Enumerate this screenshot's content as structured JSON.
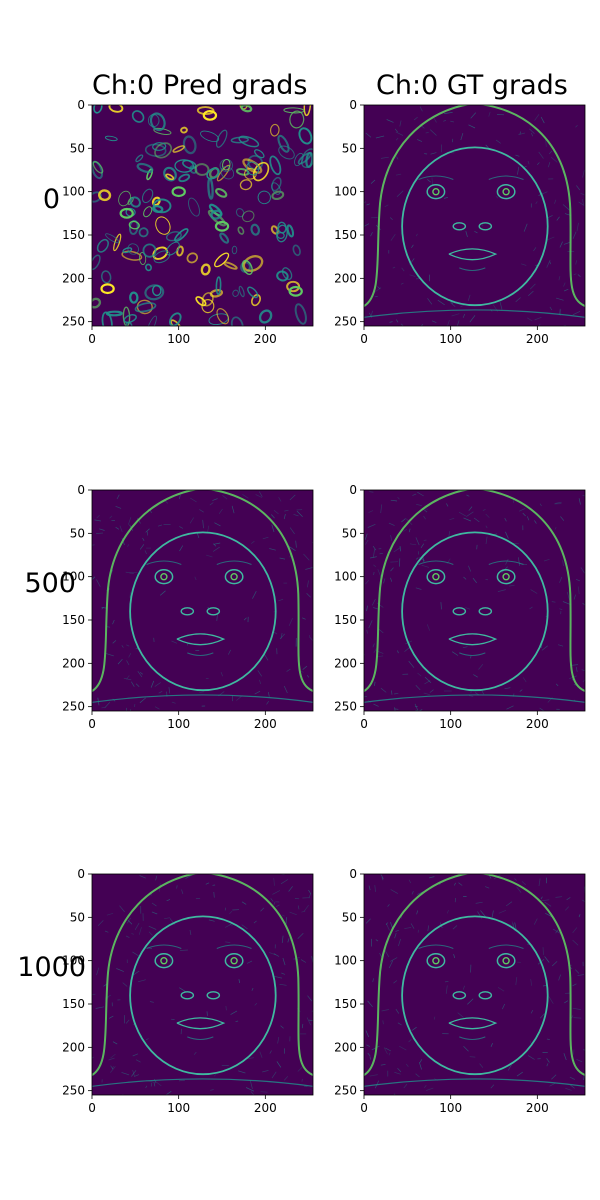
{
  "columns": [
    "Ch:0 Pred grads",
    "Ch:0 GT grads"
  ],
  "rows": [
    "0",
    "500",
    "1000"
  ],
  "colors": {
    "background": "#440154",
    "mid": "#21918c",
    "bright": "#5ec962",
    "peak": "#fde725",
    "face_edge": "#3fb9a0"
  },
  "chart_data": [
    {
      "type": "heatmap",
      "title": "Ch:0 Pred grads",
      "row_label": "0",
      "content": "noise",
      "xlim": [
        0,
        255
      ],
      "ylim": [
        255,
        0
      ],
      "x_ticks": [
        0,
        100,
        200
      ],
      "y_ticks": [
        0,
        50,
        100,
        150,
        200,
        250
      ],
      "colormap": "viridis"
    },
    {
      "type": "heatmap",
      "title": "Ch:0 GT grads",
      "row_label": "0",
      "content": "face",
      "xlim": [
        0,
        255
      ],
      "ylim": [
        255,
        0
      ],
      "x_ticks": [
        0,
        100,
        200
      ],
      "y_ticks": [
        0,
        50,
        100,
        150,
        200,
        250
      ],
      "colormap": "viridis"
    },
    {
      "type": "heatmap",
      "title": "",
      "row_label": "500",
      "content": "face",
      "xlim": [
        0,
        255
      ],
      "ylim": [
        255,
        0
      ],
      "x_ticks": [
        0,
        100,
        200
      ],
      "y_ticks": [
        0,
        50,
        100,
        150,
        200,
        250
      ],
      "colormap": "viridis"
    },
    {
      "type": "heatmap",
      "title": "",
      "row_label": "500",
      "content": "face",
      "xlim": [
        0,
        255
      ],
      "ylim": [
        255,
        0
      ],
      "x_ticks": [
        0,
        100,
        200
      ],
      "y_ticks": [
        0,
        50,
        100,
        150,
        200,
        250
      ],
      "colormap": "viridis"
    },
    {
      "type": "heatmap",
      "title": "",
      "row_label": "1000",
      "content": "face",
      "xlim": [
        0,
        255
      ],
      "ylim": [
        255,
        0
      ],
      "x_ticks": [
        0,
        100,
        200
      ],
      "y_ticks": [
        0,
        50,
        100,
        150,
        200,
        250
      ],
      "colormap": "viridis"
    },
    {
      "type": "heatmap",
      "title": "",
      "row_label": "1000",
      "content": "face",
      "xlim": [
        0,
        255
      ],
      "ylim": [
        255,
        0
      ],
      "x_ticks": [
        0,
        100,
        200
      ],
      "y_ticks": [
        0,
        50,
        100,
        150,
        200,
        250
      ],
      "colormap": "viridis"
    }
  ]
}
